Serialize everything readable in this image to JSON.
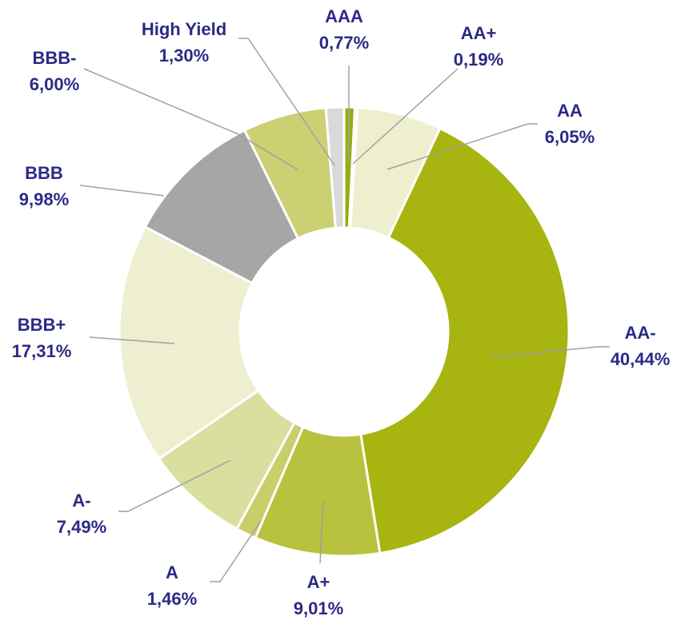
{
  "chart_data": {
    "type": "donut",
    "categories": [
      "AAA",
      "AA+",
      "AA",
      "AA-",
      "A+",
      "A",
      "A-",
      "BBB+",
      "BBB",
      "BBB-",
      "High Yield"
    ],
    "values": [
      0.77,
      0.19,
      6.05,
      40.44,
      9.01,
      1.46,
      7.49,
      17.31,
      9.98,
      6.0,
      1.3
    ],
    "value_labels": [
      "0,77%",
      "0,19%",
      "6,05%",
      "40,44%",
      "9,01%",
      "1,46%",
      "7,49%",
      "17,31%",
      "9,98%",
      "6,00%",
      "1,30%"
    ],
    "colors": [
      "#9aac12",
      "#c9cf73",
      "#eeefcf",
      "#a8b410",
      "#b9c23f",
      "#c8ce6a",
      "#dadfa0",
      "#eeefd1",
      "#a6a6a6",
      "#cbd073",
      "#d9d9d9"
    ]
  }
}
